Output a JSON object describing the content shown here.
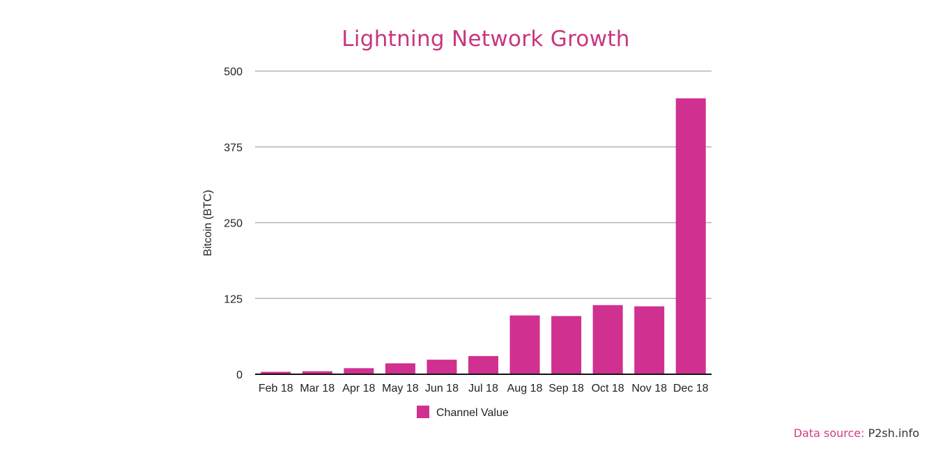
{
  "chart_data": {
    "type": "bar",
    "title": "Lightning Network Growth",
    "xlabel": "",
    "ylabel": "Bitcoin (BTC)",
    "ylim": [
      0,
      500
    ],
    "yticks": [
      0,
      125,
      250,
      375,
      500
    ],
    "grid": true,
    "legend_position": "bottom",
    "categories": [
      "Feb 18",
      "Mar 18",
      "Apr 18",
      "May 18",
      "Jun 18",
      "Jul 18",
      "Aug 18",
      "Sep 18",
      "Oct 18",
      "Nov 18",
      "Dec 18"
    ],
    "series": [
      {
        "name": "Channel Value",
        "color": "#d0308f",
        "values": [
          4,
          5,
          10,
          18,
          24,
          30,
          97,
          96,
          114,
          112,
          455
        ]
      }
    ]
  },
  "source": {
    "label": "Data source:",
    "value": "P2sh.info"
  }
}
